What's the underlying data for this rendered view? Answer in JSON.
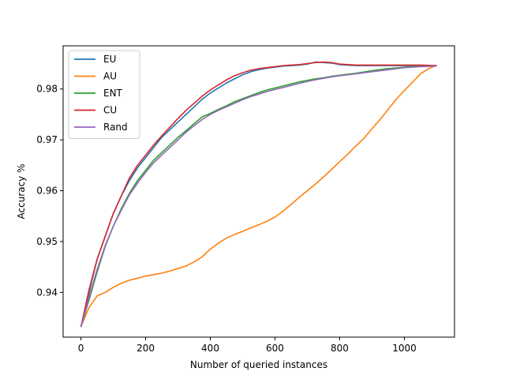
{
  "chart_data": {
    "type": "line",
    "title": "",
    "xlabel": "Number of queried instances",
    "ylabel": "Accuracy %",
    "xlim": [
      -55,
      1155
    ],
    "ylim": [
      0.9312,
      0.9885
    ],
    "xticks": [
      0,
      200,
      400,
      600,
      800,
      1000
    ],
    "yticks": [
      0.94,
      0.95,
      0.96,
      0.97,
      0.98
    ],
    "ytick_labels": [
      "0.94",
      "0.95",
      "0.96",
      "0.97",
      "0.98"
    ],
    "grid": false,
    "legend_position": "top-left",
    "series": [
      {
        "name": "EU",
        "color": "#1f77b4",
        "points": [
          [
            0,
            0.9332
          ],
          [
            25,
            0.94
          ],
          [
            50,
            0.9465
          ],
          [
            75,
            0.951
          ],
          [
            100,
            0.9555
          ],
          [
            125,
            0.959
          ],
          [
            150,
            0.962
          ],
          [
            175,
            0.9645
          ],
          [
            200,
            0.9665
          ],
          [
            225,
            0.9685
          ],
          [
            250,
            0.9705
          ],
          [
            275,
            0.972
          ],
          [
            300,
            0.9735
          ],
          [
            325,
            0.975
          ],
          [
            350,
            0.9765
          ],
          [
            375,
            0.978
          ],
          [
            400,
            0.9792
          ],
          [
            425,
            0.9802
          ],
          [
            450,
            0.9812
          ],
          [
            475,
            0.982
          ],
          [
            500,
            0.9828
          ],
          [
            525,
            0.9834
          ],
          [
            550,
            0.9838
          ],
          [
            575,
            0.9841
          ],
          [
            600,
            0.9843
          ],
          [
            625,
            0.9845
          ],
          [
            650,
            0.9846
          ],
          [
            675,
            0.9847
          ],
          [
            700,
            0.9849
          ],
          [
            725,
            0.9853
          ],
          [
            750,
            0.9852
          ],
          [
            775,
            0.9851
          ],
          [
            800,
            0.9848
          ],
          [
            850,
            0.9846
          ],
          [
            900,
            0.9846
          ],
          [
            950,
            0.9846
          ],
          [
            1000,
            0.9846
          ],
          [
            1050,
            0.9846
          ],
          [
            1100,
            0.9846
          ]
        ]
      },
      {
        "name": "AU",
        "color": "#ff7f0e",
        "points": [
          [
            0,
            0.9333
          ],
          [
            25,
            0.937
          ],
          [
            50,
            0.9393
          ],
          [
            75,
            0.94
          ],
          [
            100,
            0.941
          ],
          [
            125,
            0.9418
          ],
          [
            150,
            0.9424
          ],
          [
            175,
            0.9428
          ],
          [
            200,
            0.9432
          ],
          [
            225,
            0.9435
          ],
          [
            250,
            0.9438
          ],
          [
            275,
            0.9442
          ],
          [
            300,
            0.9447
          ],
          [
            325,
            0.9452
          ],
          [
            350,
            0.946
          ],
          [
            375,
            0.947
          ],
          [
            400,
            0.9485
          ],
          [
            425,
            0.9497
          ],
          [
            450,
            0.9507
          ],
          [
            475,
            0.9514
          ],
          [
            500,
            0.952
          ],
          [
            525,
            0.9527
          ],
          [
            550,
            0.9533
          ],
          [
            575,
            0.954
          ],
          [
            600,
            0.9548
          ],
          [
            625,
            0.956
          ],
          [
            650,
            0.9573
          ],
          [
            675,
            0.9587
          ],
          [
            700,
            0.96
          ],
          [
            725,
            0.9613
          ],
          [
            750,
            0.9627
          ],
          [
            775,
            0.9642
          ],
          [
            800,
            0.9657
          ],
          [
            825,
            0.9672
          ],
          [
            850,
            0.9688
          ],
          [
            875,
            0.9703
          ],
          [
            900,
            0.9722
          ],
          [
            925,
            0.974
          ],
          [
            950,
            0.976
          ],
          [
            975,
            0.978
          ],
          [
            1000,
            0.9797
          ],
          [
            1025,
            0.9813
          ],
          [
            1050,
            0.983
          ],
          [
            1075,
            0.984
          ],
          [
            1100,
            0.9847
          ]
        ]
      },
      {
        "name": "ENT",
        "color": "#2ca02c",
        "points": [
          [
            0,
            0.9332
          ],
          [
            25,
            0.9385
          ],
          [
            50,
            0.944
          ],
          [
            75,
            0.949
          ],
          [
            100,
            0.953
          ],
          [
            125,
            0.9565
          ],
          [
            150,
            0.9595
          ],
          [
            175,
            0.962
          ],
          [
            200,
            0.964
          ],
          [
            225,
            0.966
          ],
          [
            250,
            0.9675
          ],
          [
            275,
            0.969
          ],
          [
            300,
            0.9705
          ],
          [
            325,
            0.9718
          ],
          [
            350,
            0.9732
          ],
          [
            375,
            0.9745
          ],
          [
            400,
            0.9752
          ],
          [
            425,
            0.976
          ],
          [
            450,
            0.9767
          ],
          [
            475,
            0.9775
          ],
          [
            500,
            0.9781
          ],
          [
            525,
            0.9787
          ],
          [
            550,
            0.9793
          ],
          [
            575,
            0.9798
          ],
          [
            600,
            0.9802
          ],
          [
            625,
            0.9806
          ],
          [
            650,
            0.981
          ],
          [
            675,
            0.9814
          ],
          [
            700,
            0.9817
          ],
          [
            725,
            0.982
          ],
          [
            750,
            0.9822
          ],
          [
            775,
            0.9825
          ],
          [
            800,
            0.9827
          ],
          [
            850,
            0.9831
          ],
          [
            900,
            0.9836
          ],
          [
            950,
            0.984
          ],
          [
            1000,
            0.9843
          ],
          [
            1050,
            0.9845
          ],
          [
            1100,
            0.9846
          ]
        ]
      },
      {
        "name": "CU",
        "color": "#d62728",
        "points": [
          [
            0,
            0.9332
          ],
          [
            25,
            0.9405
          ],
          [
            50,
            0.9465
          ],
          [
            75,
            0.951
          ],
          [
            100,
            0.9555
          ],
          [
            125,
            0.959
          ],
          [
            150,
            0.9625
          ],
          [
            175,
            0.965
          ],
          [
            200,
            0.967
          ],
          [
            225,
            0.969
          ],
          [
            250,
            0.9708
          ],
          [
            275,
            0.9725
          ],
          [
            300,
            0.9742
          ],
          [
            325,
            0.9758
          ],
          [
            350,
            0.9772
          ],
          [
            375,
            0.9786
          ],
          [
            400,
            0.9798
          ],
          [
            425,
            0.9808
          ],
          [
            450,
            0.9818
          ],
          [
            475,
            0.9826
          ],
          [
            500,
            0.9832
          ],
          [
            525,
            0.9837
          ],
          [
            550,
            0.984
          ],
          [
            575,
            0.9842
          ],
          [
            600,
            0.9844
          ],
          [
            625,
            0.9846
          ],
          [
            650,
            0.9847
          ],
          [
            675,
            0.9848
          ],
          [
            700,
            0.985
          ],
          [
            725,
            0.9852
          ],
          [
            750,
            0.9853
          ],
          [
            775,
            0.9852
          ],
          [
            800,
            0.9849
          ],
          [
            850,
            0.9847
          ],
          [
            900,
            0.9847
          ],
          [
            950,
            0.9847
          ],
          [
            1000,
            0.9847
          ],
          [
            1050,
            0.9847
          ],
          [
            1100,
            0.9846
          ]
        ]
      },
      {
        "name": "Rand",
        "color": "#9467bd",
        "points": [
          [
            0,
            0.9332
          ],
          [
            25,
            0.939
          ],
          [
            50,
            0.9445
          ],
          [
            75,
            0.9492
          ],
          [
            100,
            0.953
          ],
          [
            125,
            0.9562
          ],
          [
            150,
            0.9592
          ],
          [
            175,
            0.9615
          ],
          [
            200,
            0.9636
          ],
          [
            225,
            0.9655
          ],
          [
            250,
            0.967
          ],
          [
            275,
            0.9685
          ],
          [
            300,
            0.97
          ],
          [
            325,
            0.9715
          ],
          [
            350,
            0.9728
          ],
          [
            375,
            0.974
          ],
          [
            400,
            0.975
          ],
          [
            425,
            0.9758
          ],
          [
            450,
            0.9765
          ],
          [
            475,
            0.9772
          ],
          [
            500,
            0.9779
          ],
          [
            525,
            0.9785
          ],
          [
            550,
            0.979
          ],
          [
            575,
            0.9795
          ],
          [
            600,
            0.9799
          ],
          [
            625,
            0.9803
          ],
          [
            650,
            0.9807
          ],
          [
            675,
            0.9811
          ],
          [
            700,
            0.9815
          ],
          [
            725,
            0.9818
          ],
          [
            750,
            0.9821
          ],
          [
            775,
            0.9824
          ],
          [
            800,
            0.9826
          ],
          [
            850,
            0.983
          ],
          [
            900,
            0.9834
          ],
          [
            950,
            0.9838
          ],
          [
            1000,
            0.9842
          ],
          [
            1050,
            0.9844
          ],
          [
            1100,
            0.9845
          ]
        ]
      }
    ]
  }
}
